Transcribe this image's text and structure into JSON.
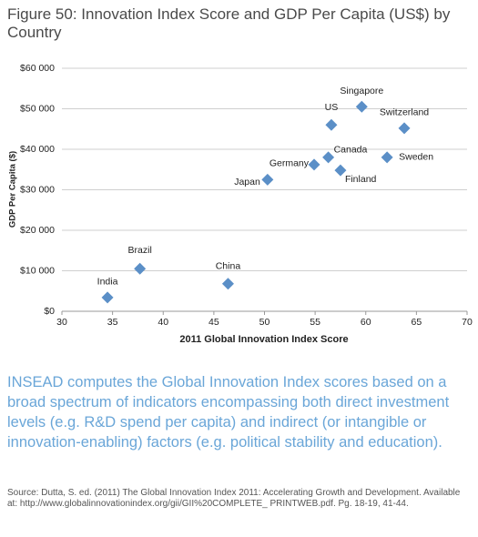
{
  "title": "Figure 50: Innovation Index Score and GDP Per Capita (US$) by Country",
  "chart_data": {
    "type": "scatter",
    "x_label": "2011 Global Innovation Index Score",
    "y_label": "GDP Per Capita ($)",
    "labels": [
      "India",
      "Brazil",
      "China",
      "Japan",
      "Germany",
      "Canada",
      "US",
      "Finland",
      "Singapore",
      "Sweden",
      "Switzerland"
    ],
    "x": [
      34.5,
      37.7,
      46.4,
      50.3,
      54.9,
      56.3,
      56.6,
      57.5,
      59.6,
      62.1,
      63.8
    ],
    "values": [
      3400,
      10500,
      6800,
      32500,
      36200,
      38000,
      46000,
      34800,
      50500,
      38000,
      45200
    ],
    "color": "#5b8fc7",
    "xlim": [
      30,
      70
    ],
    "xticks": [
      30,
      35,
      40,
      45,
      50,
      55,
      60,
      65,
      70
    ],
    "ylim": [
      0,
      60000
    ],
    "yticks": [
      {
        "value": 0,
        "label": "$0"
      },
      {
        "value": 10000,
        "label": "$10 000"
      },
      {
        "value": 20000,
        "label": "$20 000"
      },
      {
        "value": 30000,
        "label": "$30 000"
      },
      {
        "value": 40000,
        "label": "$40 000"
      },
      {
        "value": 50000,
        "label": "$50 000"
      },
      {
        "value": 60000,
        "label": "$60 000"
      }
    ],
    "grid": true
  },
  "caption": "INSEAD computes the Global Innovation Index scores based on a broad spectrum of indicators encompassing both direct investment levels (e.g. R&D spend per capita) and indirect (or intangible or innovation-enabling) factors (e.g. political stability and education).",
  "source": "Source: Dutta, S. ed. (2011) The Global Innovation Index 2011: Accelerating Growth and Development. Available at: http://www.globalinnovationindex.org/gii/GII%20COMPLETE_ PRINTWEB.pdf. Pg. 18-19, 41-44."
}
